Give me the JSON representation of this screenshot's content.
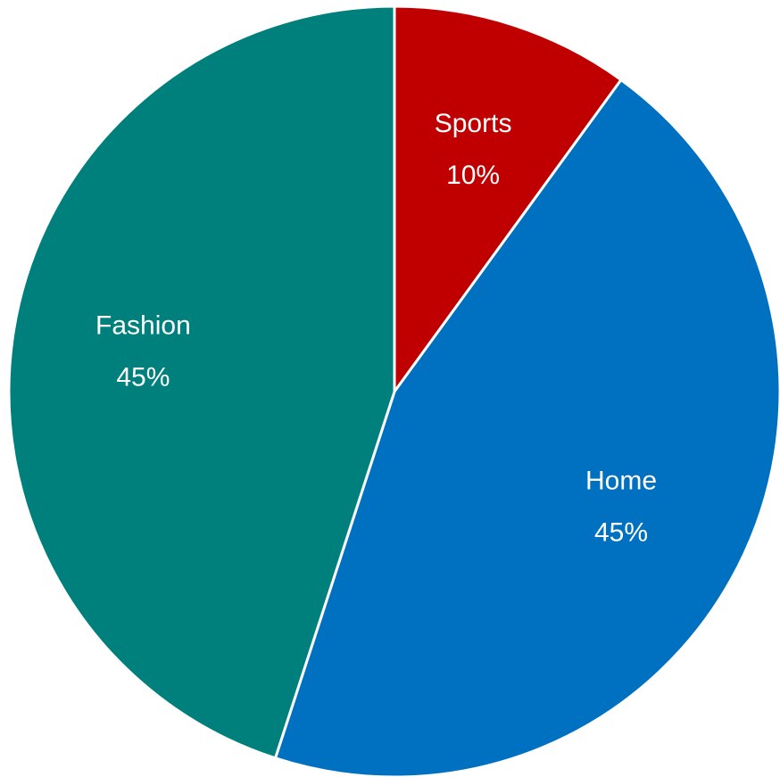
{
  "chart_data": {
    "type": "pie",
    "slices": [
      {
        "label": "Sports",
        "value": 10,
        "value_label": "10%",
        "color": "#C00000"
      },
      {
        "label": "Home",
        "value": 45,
        "value_label": "45%",
        "color": "#0070C0"
      },
      {
        "label": "Fashion",
        "value": 45,
        "value_label": "45%",
        "color": "#00807D"
      }
    ],
    "start_angle_deg": 0,
    "direction": "clockwise",
    "legend": "none",
    "labels_inside": true
  }
}
